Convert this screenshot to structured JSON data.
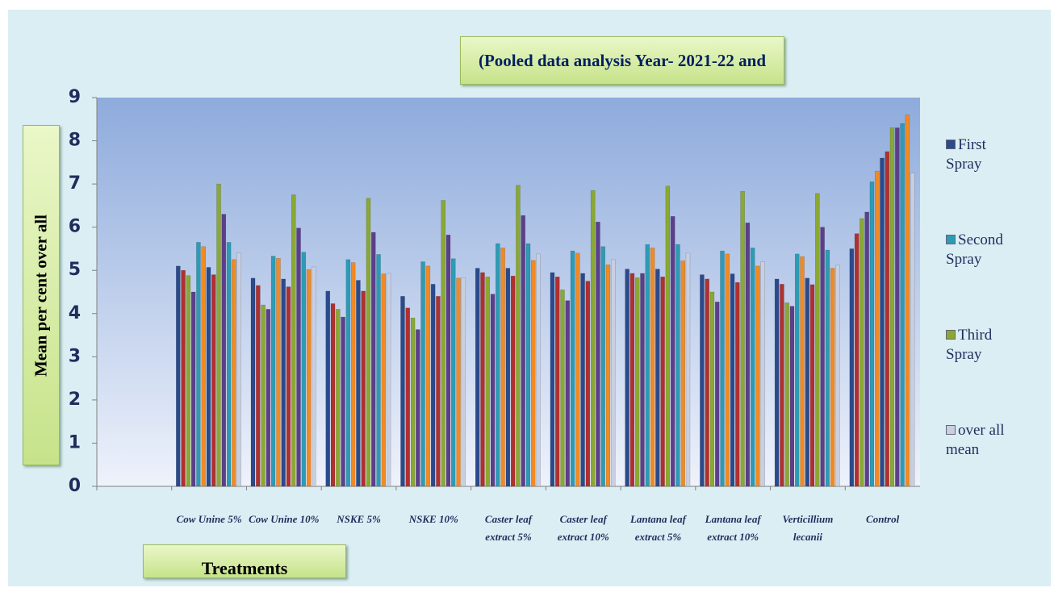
{
  "chart_data": {
    "type": "bar",
    "title": "(Pooled data analysis Year- 2021-22 and",
    "x_label": "Treatments",
    "y_label": "Mean per cent over all",
    "categories": [
      null,
      "Cow Unine 5%",
      "Cow Unine 10%",
      "NSKE 5%",
      "NSKE 10%",
      "Caster leaf extract 5%",
      "Caster leaf extract 10%",
      "Lantana leaf extract 5%",
      "Lantana leaf extract 10%",
      "Verticillium lecanii",
      "Control"
    ],
    "ylim": [
      0,
      9
    ],
    "yticks": [
      0,
      1,
      2,
      3,
      4,
      5,
      6,
      7,
      8,
      9
    ],
    "grid": false,
    "legend": "right",
    "series": [
      {
        "name": "First Spray",
        "color": "#2a4a8c",
        "values": [
          null,
          5.1,
          4.82,
          4.52,
          4.4,
          5.05,
          4.95,
          5.03,
          4.9,
          4.8,
          5.5
        ]
      },
      {
        "color": "#b03030",
        "values": [
          null,
          5.0,
          4.65,
          4.23,
          4.13,
          4.95,
          4.85,
          4.93,
          4.8,
          4.68,
          5.85
        ]
      },
      {
        "color": "#8aa832",
        "values": [
          null,
          4.88,
          4.2,
          4.1,
          3.9,
          4.85,
          4.55,
          4.83,
          4.5,
          4.25,
          6.2
        ]
      },
      {
        "color": "#5c3f8a",
        "values": [
          null,
          4.5,
          4.1,
          3.92,
          3.63,
          4.45,
          4.3,
          4.93,
          4.27,
          4.17,
          6.35
        ]
      },
      {
        "name": "Second Spray",
        "color": "#2d9bb5",
        "values": [
          null,
          5.65,
          5.33,
          5.25,
          5.2,
          5.62,
          5.45,
          5.6,
          5.45,
          5.38,
          7.05
        ]
      },
      {
        "color": "#f08a24",
        "values": [
          null,
          5.55,
          5.28,
          5.18,
          5.1,
          5.52,
          5.4,
          5.52,
          5.38,
          5.32,
          7.3
        ]
      },
      {
        "color": "#2a4a8c",
        "values": [
          null,
          5.07,
          4.8,
          4.77,
          4.68,
          5.05,
          4.93,
          5.03,
          4.92,
          4.82,
          7.6
        ]
      },
      {
        "color": "#b03030",
        "values": [
          null,
          4.9,
          4.62,
          4.52,
          4.4,
          4.87,
          4.75,
          4.85,
          4.72,
          4.67,
          7.75
        ]
      },
      {
        "name": "Third Spray",
        "color": "#8aa832",
        "values": [
          null,
          7.0,
          6.75,
          6.67,
          6.62,
          6.97,
          6.85,
          6.95,
          6.83,
          6.78,
          8.3
        ]
      },
      {
        "color": "#5c3f8a",
        "values": [
          null,
          6.3,
          5.98,
          5.88,
          5.82,
          6.27,
          6.12,
          6.25,
          6.1,
          6.0,
          8.3
        ]
      },
      {
        "color": "#2d9bb5",
        "values": [
          null,
          5.65,
          5.42,
          5.37,
          5.27,
          5.62,
          5.55,
          5.6,
          5.52,
          5.47,
          8.4
        ]
      },
      {
        "color": "#f08a24",
        "values": [
          null,
          5.25,
          5.02,
          4.92,
          4.82,
          5.23,
          5.13,
          5.22,
          5.1,
          5.05,
          8.6
        ]
      },
      {
        "name": "over all mean",
        "color": "#c8cfe0",
        "values": [
          null,
          5.4,
          5.08,
          4.93,
          4.83,
          5.38,
          5.25,
          5.4,
          5.2,
          5.12,
          7.25
        ]
      }
    ]
  }
}
